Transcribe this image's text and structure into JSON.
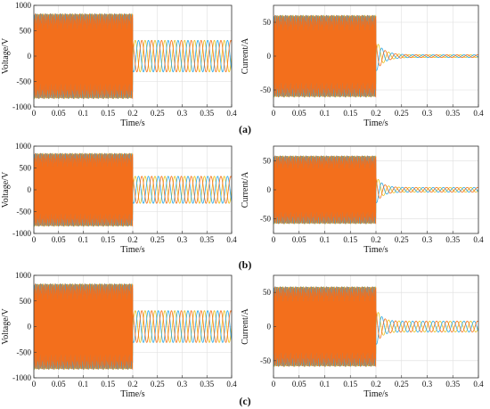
{
  "panel_labels": [
    "(a)",
    "(b)",
    "(c)"
  ],
  "colors": {
    "phase_a": "#e8c21c",
    "phase_b": "#2aa7e6",
    "phase_c": "#f36f1c",
    "grid": "#dedede",
    "axis": "#333333"
  },
  "chart_data": [
    {
      "type": "line",
      "panel": "(a)",
      "xlabel": "Time/s",
      "ylabel": "Voltage/V",
      "xlim": [
        0,
        0.4
      ],
      "ylim": [
        -1000,
        1000
      ],
      "xticks": [
        "0",
        "0.05",
        "0.1",
        "0.15",
        "0.2",
        "0.25",
        "0.3",
        "0.35",
        "0.4"
      ],
      "yticks": [
        "1000",
        "500",
        "0",
        "-500",
        "-1000"
      ],
      "grid": true,
      "fault_time": 0.2,
      "pre_fault_amplitude": 830,
      "post_fault_amplitude": 310,
      "frequency_hz": 50,
      "post_decay": 0
    },
    {
      "type": "line",
      "panel": "(a)",
      "xlabel": "Time/s",
      "ylabel": "Current/A",
      "xlim": [
        0,
        0.4
      ],
      "ylim": [
        -75,
        75
      ],
      "xticks": [
        "0",
        "0.05",
        "0.1",
        "0.15",
        "0.2",
        "0.25",
        "0.3",
        "0.35",
        "0.4"
      ],
      "yticks": [
        "50",
        "0",
        "-50"
      ],
      "grid": true,
      "fault_time": 0.2,
      "pre_fault_amplitude": 60,
      "post_fault_amplitude": 2,
      "frequency_hz": 50,
      "post_decay": 0.015
    },
    {
      "type": "line",
      "panel": "(b)",
      "xlabel": "Time/s",
      "ylabel": "Voltage/V",
      "xlim": [
        0,
        0.4
      ],
      "ylim": [
        -1000,
        1000
      ],
      "xticks": [
        "0",
        "0.05",
        "0.1",
        "0.15",
        "0.2",
        "0.25",
        "0.3",
        "0.35",
        "0.4"
      ],
      "yticks": [
        "1000",
        "500",
        "0",
        "-500",
        "-1000"
      ],
      "grid": true,
      "fault_time": 0.2,
      "pre_fault_amplitude": 830,
      "post_fault_amplitude": 310,
      "frequency_hz": 50,
      "post_decay": 0
    },
    {
      "type": "line",
      "panel": "(b)",
      "xlabel": "Time/s",
      "ylabel": "Current/A",
      "xlim": [
        0,
        0.4
      ],
      "ylim": [
        -75,
        75
      ],
      "xticks": [
        "0",
        "0.05",
        "0.1",
        "0.15",
        "0.2",
        "0.25",
        "0.3",
        "0.35",
        "0.4"
      ],
      "yticks": [
        "50",
        "0",
        "-50"
      ],
      "grid": true,
      "fault_time": 0.2,
      "pre_fault_amplitude": 58,
      "post_fault_amplitude": 4,
      "frequency_hz": 50,
      "post_decay": 0.012
    },
    {
      "type": "line",
      "panel": "(c)",
      "xlabel": "Time/s",
      "ylabel": "Voltage/V",
      "xlim": [
        0,
        0.4
      ],
      "ylim": [
        -1000,
        1000
      ],
      "xticks": [
        "0",
        "0.05",
        "0.1",
        "0.15",
        "0.2",
        "0.25",
        "0.3",
        "0.35",
        "0.4"
      ],
      "yticks": [
        "1000",
        "500",
        "0",
        "-500",
        "-1000"
      ],
      "grid": true,
      "fault_time": 0.2,
      "pre_fault_amplitude": 830,
      "post_fault_amplitude": 310,
      "frequency_hz": 50,
      "post_decay": 0
    },
    {
      "type": "line",
      "panel": "(c)",
      "xlabel": "Time/s",
      "ylabel": "Current/A",
      "xlim": [
        0,
        0.4
      ],
      "ylim": [
        -75,
        75
      ],
      "xticks": [
        "0",
        "0.05",
        "0.1",
        "0.15",
        "0.2",
        "0.25",
        "0.3",
        "0.35",
        "0.4"
      ],
      "yticks": [
        "50",
        "0",
        "-50"
      ],
      "grid": true,
      "fault_time": 0.2,
      "pre_fault_amplitude": 58,
      "post_fault_amplitude": 8,
      "frequency_hz": 50,
      "post_decay": 0.01
    }
  ]
}
